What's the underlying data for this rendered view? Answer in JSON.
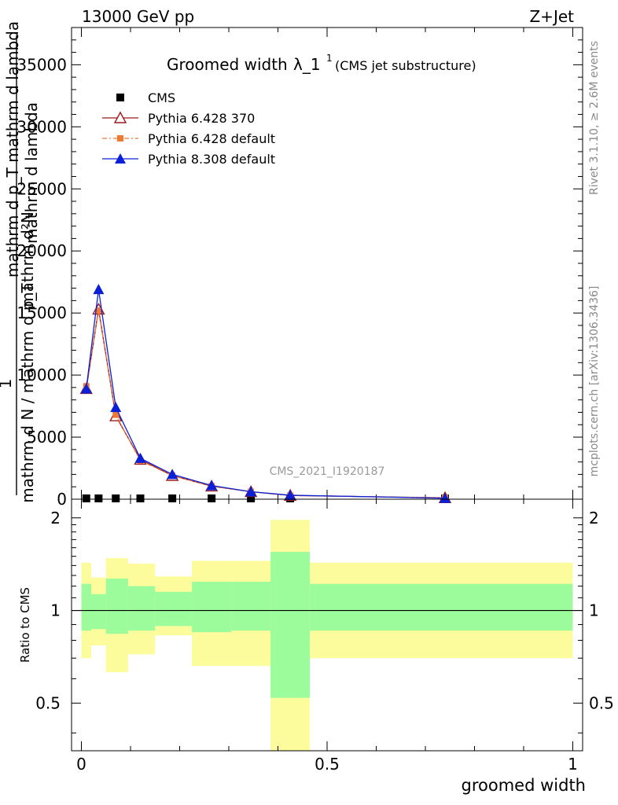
{
  "header": {
    "left": "13000 GeV pp",
    "right": "Z+Jet"
  },
  "plot_title": {
    "main": "Groomed width",
    "symbol": "λ_1",
    "superscript": "1",
    "sub": "(CMS jet substructure)"
  },
  "side_labels": {
    "rivet": "Rivet 3.1.10, ≥ 2.6M events",
    "mcplots": "mcplots.cern.ch [arXiv:1306.3436]"
  },
  "ylabel_lines": {
    "numerator_1": "mathrm d²N",
    "numerator_2": "mathrm d p_T mathrm d lambda",
    "fraction_left": "1",
    "denominator": "mathrm d N / mathrm d p_T"
  },
  "watermark": "CMS_2021_I1920187",
  "ratio_ylabel": "Ratio to CMS",
  "xlabel": "groomed width",
  "colors": {
    "cms": "#000000",
    "py6_370": "#9b1b1b",
    "py6_default": "#f07830",
    "py8": "#0a20d8",
    "band_inner": "#9cfc9c",
    "band_outer": "#fcfc9c"
  },
  "chart_data": [
    {
      "type": "line",
      "xlim": [
        -0.02,
        1.02
      ],
      "ylim": [
        0,
        38000
      ],
      "yticks": [
        0,
        5000,
        10000,
        15000,
        20000,
        25000,
        30000,
        35000
      ],
      "ytick_labels": [
        "0",
        "5000",
        "10000",
        "15000",
        "20000",
        "25000",
        "30000",
        "35000"
      ],
      "legend_position": "top-left",
      "x": [
        0.01,
        0.035,
        0.07,
        0.12,
        0.185,
        0.265,
        0.345,
        0.425,
        0.74
      ],
      "series": [
        {
          "name": "CMS",
          "marker": "square",
          "values": [
            40,
            40,
            40,
            40,
            40,
            40,
            30,
            20,
            10
          ]
        },
        {
          "name": "Pythia 6.428 370",
          "marker": "triangle-open",
          "values": [
            8900,
            15300,
            6700,
            3200,
            1900,
            1050,
            600,
            300,
            110
          ]
        },
        {
          "name": "Pythia 6.428 default",
          "marker": "square-small",
          "values": [
            9100,
            15200,
            6800,
            3100,
            1900,
            1050,
            600,
            300,
            110
          ]
        },
        {
          "name": "Pythia 8.308 default",
          "marker": "triangle-filled",
          "values": [
            8900,
            16900,
            7400,
            3300,
            2000,
            1100,
            600,
            320,
            80
          ]
        }
      ]
    },
    {
      "type": "area",
      "ylabel": "Ratio to CMS",
      "xlabel": "groomed width",
      "xlim": [
        -0.02,
        1.02
      ],
      "ylim": [
        0.35,
        2.3
      ],
      "yticks": [
        0.5,
        1,
        2
      ],
      "ytick_labels": [
        "0.5",
        "1",
        "2"
      ],
      "xticks": [
        0,
        0.5,
        1
      ],
      "xtick_labels": [
        "0",
        "0.5",
        "1"
      ],
      "bins": [
        {
          "x0": 0.0,
          "x1": 0.02,
          "in_lo": 0.86,
          "in_hi": 1.22,
          "out_lo": 0.7,
          "out_hi": 1.43
        },
        {
          "x0": 0.02,
          "x1": 0.05,
          "in_lo": 0.87,
          "in_hi": 1.13,
          "out_lo": 0.77,
          "out_hi": 1.28
        },
        {
          "x0": 0.05,
          "x1": 0.095,
          "in_lo": 0.84,
          "in_hi": 1.27,
          "out_lo": 0.63,
          "out_hi": 1.48
        },
        {
          "x0": 0.095,
          "x1": 0.15,
          "in_lo": 0.86,
          "in_hi": 1.2,
          "out_lo": 0.72,
          "out_hi": 1.42
        },
        {
          "x0": 0.15,
          "x1": 0.225,
          "in_lo": 0.89,
          "in_hi": 1.15,
          "out_lo": 0.83,
          "out_hi": 1.29
        },
        {
          "x0": 0.225,
          "x1": 0.305,
          "in_lo": 0.85,
          "in_hi": 1.24,
          "out_lo": 0.66,
          "out_hi": 1.45
        },
        {
          "x0": 0.305,
          "x1": 0.385,
          "in_lo": 0.86,
          "in_hi": 1.24,
          "out_lo": 0.66,
          "out_hi": 1.45
        },
        {
          "x0": 0.385,
          "x1": 0.465,
          "in_lo": 0.52,
          "in_hi": 1.55,
          "out_lo": 0.35,
          "out_hi": 1.97
        },
        {
          "x0": 0.465,
          "x1": 1.0,
          "in_lo": 0.86,
          "in_hi": 1.22,
          "out_lo": 0.7,
          "out_hi": 1.43
        }
      ]
    }
  ]
}
